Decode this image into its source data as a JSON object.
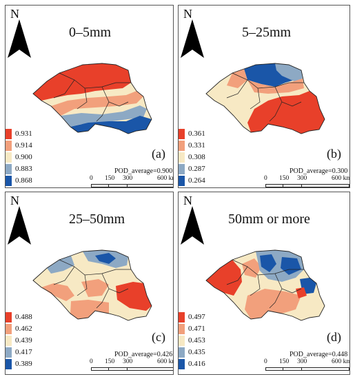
{
  "north_label": "N",
  "scale_ticks": [
    "0",
    "150",
    "300",
    "600 km"
  ],
  "panels": [
    {
      "id": "a",
      "title": "0–5mm",
      "label": "(a)",
      "pod": "POD_average=0.900",
      "legend": [
        {
          "value": "0.931",
          "color": "#e8402a"
        },
        {
          "value": "0.914",
          "color": "#f2a07c"
        },
        {
          "value": "0.900",
          "color": "#f7e9c4"
        },
        {
          "value": "0.883",
          "color": "#8da9c4"
        },
        {
          "value": "0.868",
          "color": "#1a56a8"
        }
      ]
    },
    {
      "id": "b",
      "title": "5–25mm",
      "label": "(b)",
      "pod": "POD_average=0.300",
      "legend": [
        {
          "value": "0.361",
          "color": "#e8402a"
        },
        {
          "value": "0.331",
          "color": "#f2a07c"
        },
        {
          "value": "0.308",
          "color": "#f7e9c4"
        },
        {
          "value": "0.287",
          "color": "#8da9c4"
        },
        {
          "value": "0.264",
          "color": "#1a56a8"
        }
      ]
    },
    {
      "id": "c",
      "title": "25–50mm",
      "label": "(c)",
      "pod": "POD_average=0.426",
      "legend": [
        {
          "value": "0.488",
          "color": "#e8402a"
        },
        {
          "value": "0.462",
          "color": "#f2a07c"
        },
        {
          "value": "0.439",
          "color": "#f7e9c4"
        },
        {
          "value": "0.417",
          "color": "#8da9c4"
        },
        {
          "value": "0.389",
          "color": "#1a56a8"
        }
      ]
    },
    {
      "id": "d",
      "title": "50mm or more",
      "label": "(d)",
      "pod": "POD_average=0.448",
      "legend": [
        {
          "value": "0.497",
          "color": "#e8402a"
        },
        {
          "value": "0.471",
          "color": "#f2a07c"
        },
        {
          "value": "0.453",
          "color": "#f7e9c4"
        },
        {
          "value": "0.435",
          "color": "#8da9c4"
        },
        {
          "value": "0.416",
          "color": "#1a56a8"
        }
      ]
    }
  ]
}
